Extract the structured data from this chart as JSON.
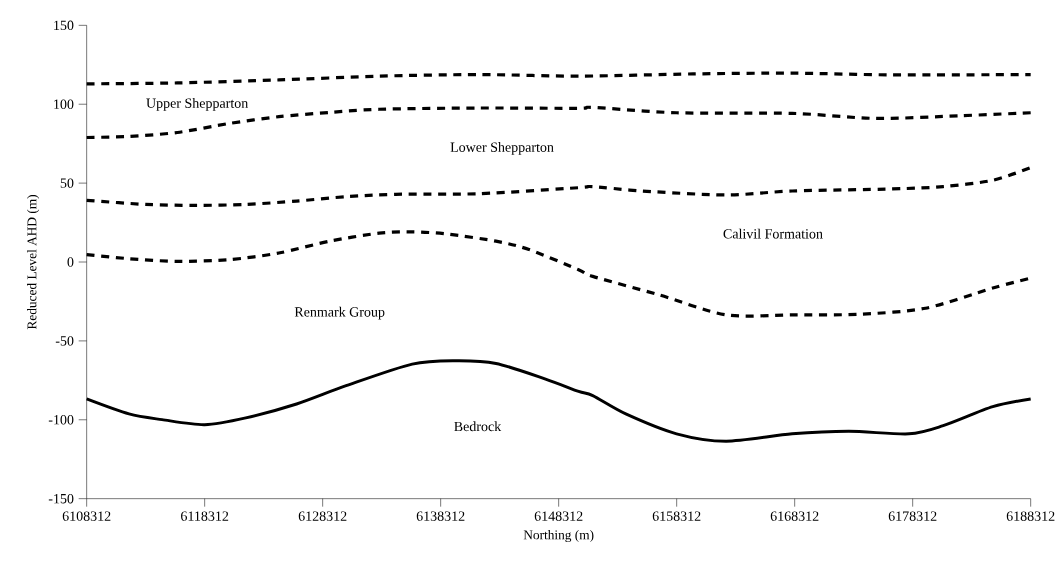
{
  "chart_data": {
    "type": "line",
    "xlabel": "Northing (m)",
    "ylabel": "Reduced Level AHD (m)",
    "xlim": [
      6108312,
      6188312
    ],
    "ylim": [
      -150,
      150
    ],
    "xticks": [
      6108312,
      6118312,
      6128312,
      6138312,
      6148312,
      6158312,
      6168312,
      6178312,
      6188312
    ],
    "yticks": [
      -150,
      -100,
      -50,
      0,
      50,
      100,
      150
    ],
    "marker": "none",
    "series": [
      {
        "color": "#000000",
        "line_style": "dashed",
        "x": [
          6108312,
          6116000,
          6124600,
          6133100,
          6141600,
          6150000,
          6159700,
          6168100,
          6176600,
          6188312
        ],
        "values": [
          112.9,
          113.5,
          115.4,
          117.8,
          118.8,
          117.8,
          119.2,
          119.7,
          118.6,
          118.8
        ]
      },
      {
        "color": "#000000",
        "line_style": "dashed",
        "x": [
          6108312,
          6111900,
          6116000,
          6120400,
          6124600,
          6128900,
          6133100,
          6141600,
          6150000,
          6151200,
          6158300,
          6168100,
          6175200,
          6182300,
          6188312
        ],
        "values": [
          78.9,
          79.6,
          82.1,
          87.8,
          92.1,
          94.8,
          96.8,
          97.6,
          97.4,
          98.0,
          94.6,
          94.2,
          91.0,
          92.7,
          94.6
        ]
      },
      {
        "color": "#000000",
        "line_style": "dashed",
        "x": [
          6108312,
          6113300,
          6117600,
          6121800,
          6126100,
          6130300,
          6134500,
          6141600,
          6150000,
          6151200,
          6155400,
          6162500,
          6168100,
          6176600,
          6180900,
          6185100,
          6188312
        ],
        "values": [
          39.1,
          36.5,
          35.9,
          36.5,
          38.6,
          41.4,
          42.9,
          43.3,
          47.1,
          47.8,
          45.0,
          42.5,
          45.0,
          46.3,
          47.8,
          51.8,
          59.8
        ]
      },
      {
        "color": "#000000",
        "line_style": "dashed",
        "x": [
          6108312,
          6111900,
          6116000,
          6120400,
          6124600,
          6128900,
          6133100,
          6135900,
          6138800,
          6143000,
          6145800,
          6150000,
          6151200,
          6156800,
          6162500,
          6168100,
          6173800,
          6179400,
          6185100,
          6188312
        ],
        "values": [
          4.7,
          2.1,
          0.4,
          1.5,
          5.7,
          13.2,
          18.3,
          19.1,
          17.8,
          13.2,
          7.9,
          -4.9,
          -9.1,
          -20.8,
          -33.5,
          -33.5,
          -33.1,
          -29.3,
          -16.5,
          -10.2
        ]
      },
      {
        "color": "#000000",
        "line_style": "solid",
        "x": [
          6108312,
          6111900,
          6114700,
          6118312,
          6121800,
          6126100,
          6130300,
          6135900,
          6139600,
          6143000,
          6147200,
          6150000,
          6151200,
          6154000,
          6158300,
          6162500,
          6168100,
          6172900,
          6178000,
          6180900,
          6185100,
          6188312
        ],
        "values": [
          -86.8,
          -96.3,
          -99.9,
          -103.1,
          -98.8,
          -90.0,
          -78.4,
          -64.7,
          -62.6,
          -64.3,
          -74.2,
          -82.0,
          -84.7,
          -96.3,
          -108.9,
          -113.6,
          -108.9,
          -107.3,
          -108.9,
          -103.7,
          -91.7,
          -86.8
        ]
      }
    ],
    "annotations": [
      "Upper Shepparton",
      "Lower Shepparton",
      "Calivil Formation",
      "Renmark Group",
      "Bedrock"
    ]
  }
}
